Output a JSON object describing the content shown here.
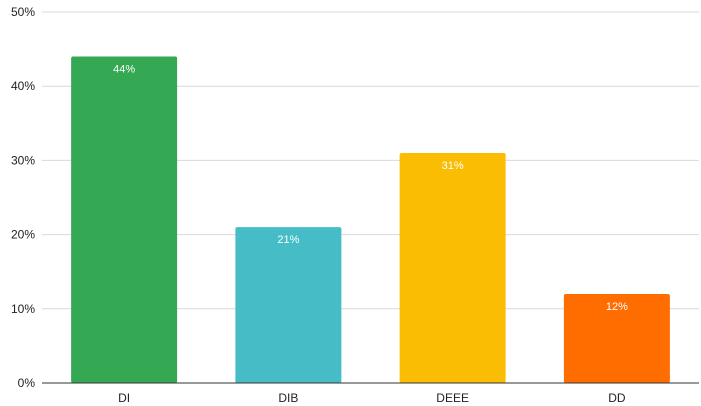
{
  "chart_data": {
    "type": "bar",
    "categories": [
      "DI",
      "DIB",
      "DEEE",
      "DD"
    ],
    "values": [
      44,
      21,
      31,
      12
    ],
    "data_labels": [
      "44%",
      "21%",
      "31%",
      "12%"
    ],
    "colors": [
      "#34a853",
      "#46bdc6",
      "#fbbc04",
      "#ff6d01"
    ],
    "ylim": [
      0,
      50
    ],
    "yticks": [
      0,
      10,
      20,
      30,
      40,
      50
    ],
    "ytick_labels": [
      "0%",
      "10%",
      "20%",
      "30%",
      "40%",
      "50%"
    ],
    "grid": true,
    "grid_color": "#d9d9d9",
    "axis_color": "#333333",
    "title": "",
    "xlabel": "",
    "ylabel": ""
  }
}
